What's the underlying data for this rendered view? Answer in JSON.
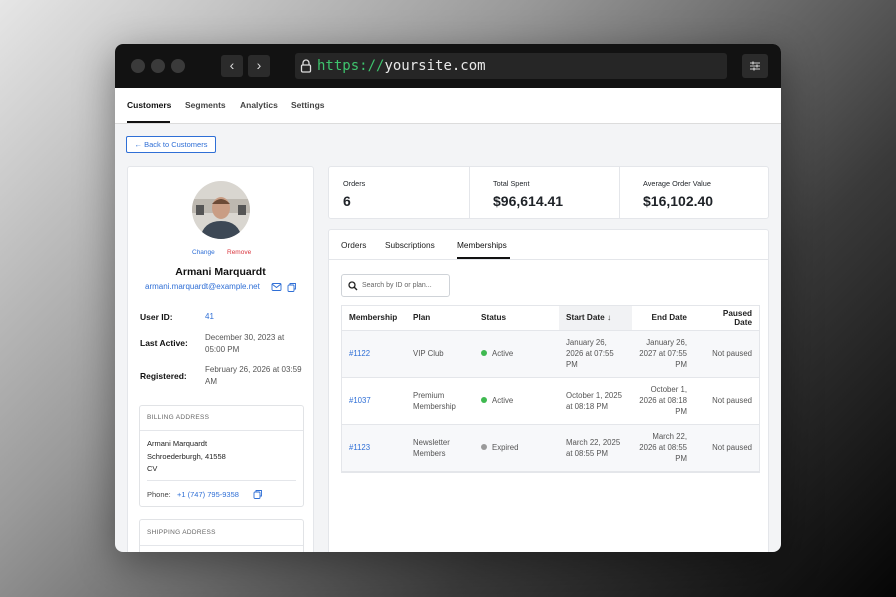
{
  "browser": {
    "url_scheme": "https://",
    "url_host": "yoursite.com"
  },
  "nav": {
    "tabs": [
      "Customers",
      "Segments",
      "Analytics",
      "Settings"
    ]
  },
  "back_button": "← Back to Customers",
  "profile": {
    "change": "Change",
    "remove": "Remove",
    "name": "Armani Marquardt",
    "email": "armani.marquardt@example.net",
    "fields": [
      {
        "label": "User ID:",
        "value": "41"
      },
      {
        "label": "Last Active:",
        "value": "December 30, 2023 at 05:00 PM"
      },
      {
        "label": "Registered:",
        "value": "February 26, 2026 at 03:59 AM"
      }
    ]
  },
  "billing": {
    "title": "BILLING ADDRESS",
    "lines": [
      "Armani Marquardt",
      "Schroederburgh, 41558",
      "CV"
    ],
    "phone_label": "Phone:",
    "phone": "+1 (747) 795-9358"
  },
  "shipping": {
    "title": "SHIPPING ADDRESS"
  },
  "stats": [
    {
      "label": "Orders",
      "value": "6"
    },
    {
      "label": "Total Spent",
      "value": "$96,614.41"
    },
    {
      "label": "Average Order Value",
      "value": "$16,102.40"
    }
  ],
  "tabs": [
    "Orders",
    "Subscriptions",
    "Memberships"
  ],
  "search_placeholder": "Search by ID or plan...",
  "table": {
    "headers": [
      "Membership",
      "Plan",
      "Status",
      "Start Date ↓",
      "End Date",
      "Paused Date"
    ],
    "rows": [
      [
        "#1122",
        "VIP Club",
        "Active",
        "January 26, 2026 at 07:55 PM",
        "January 26, 2027 at 07:55 PM",
        "Not paused"
      ],
      [
        "#1037",
        "Premium Membership",
        "Active",
        "October 1, 2025 at 08:18 PM",
        "October 1, 2026 at 08:18 PM",
        "Not paused"
      ],
      [
        "#1123",
        "Newsletter Members",
        "Expired",
        "March 22, 2025 at 08:55 PM",
        "March 22, 2026 at 08:55 PM",
        "Not paused"
      ]
    ]
  }
}
